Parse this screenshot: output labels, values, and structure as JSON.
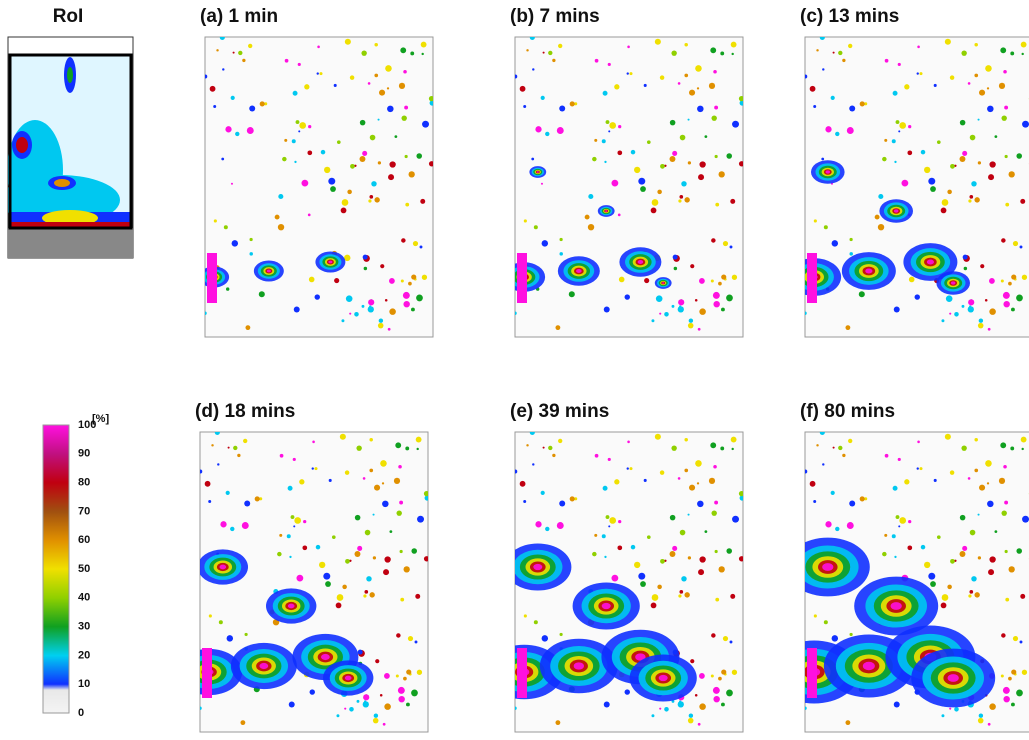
{
  "roi": {
    "label": "RoI"
  },
  "panels": [
    {
      "label": "(a) 1 min"
    },
    {
      "label": "(b) 7 mins"
    },
    {
      "label": "(c) 13 mins"
    },
    {
      "label": "(d) 18 mins"
    },
    {
      "label": "(e) 39 mins"
    },
    {
      "label": "(f) 80 mins"
    }
  ],
  "colorbar": {
    "unit": "[%]",
    "ticks": [
      100,
      90,
      80,
      70,
      60,
      50,
      40,
      30,
      20,
      10,
      0
    ]
  }
}
